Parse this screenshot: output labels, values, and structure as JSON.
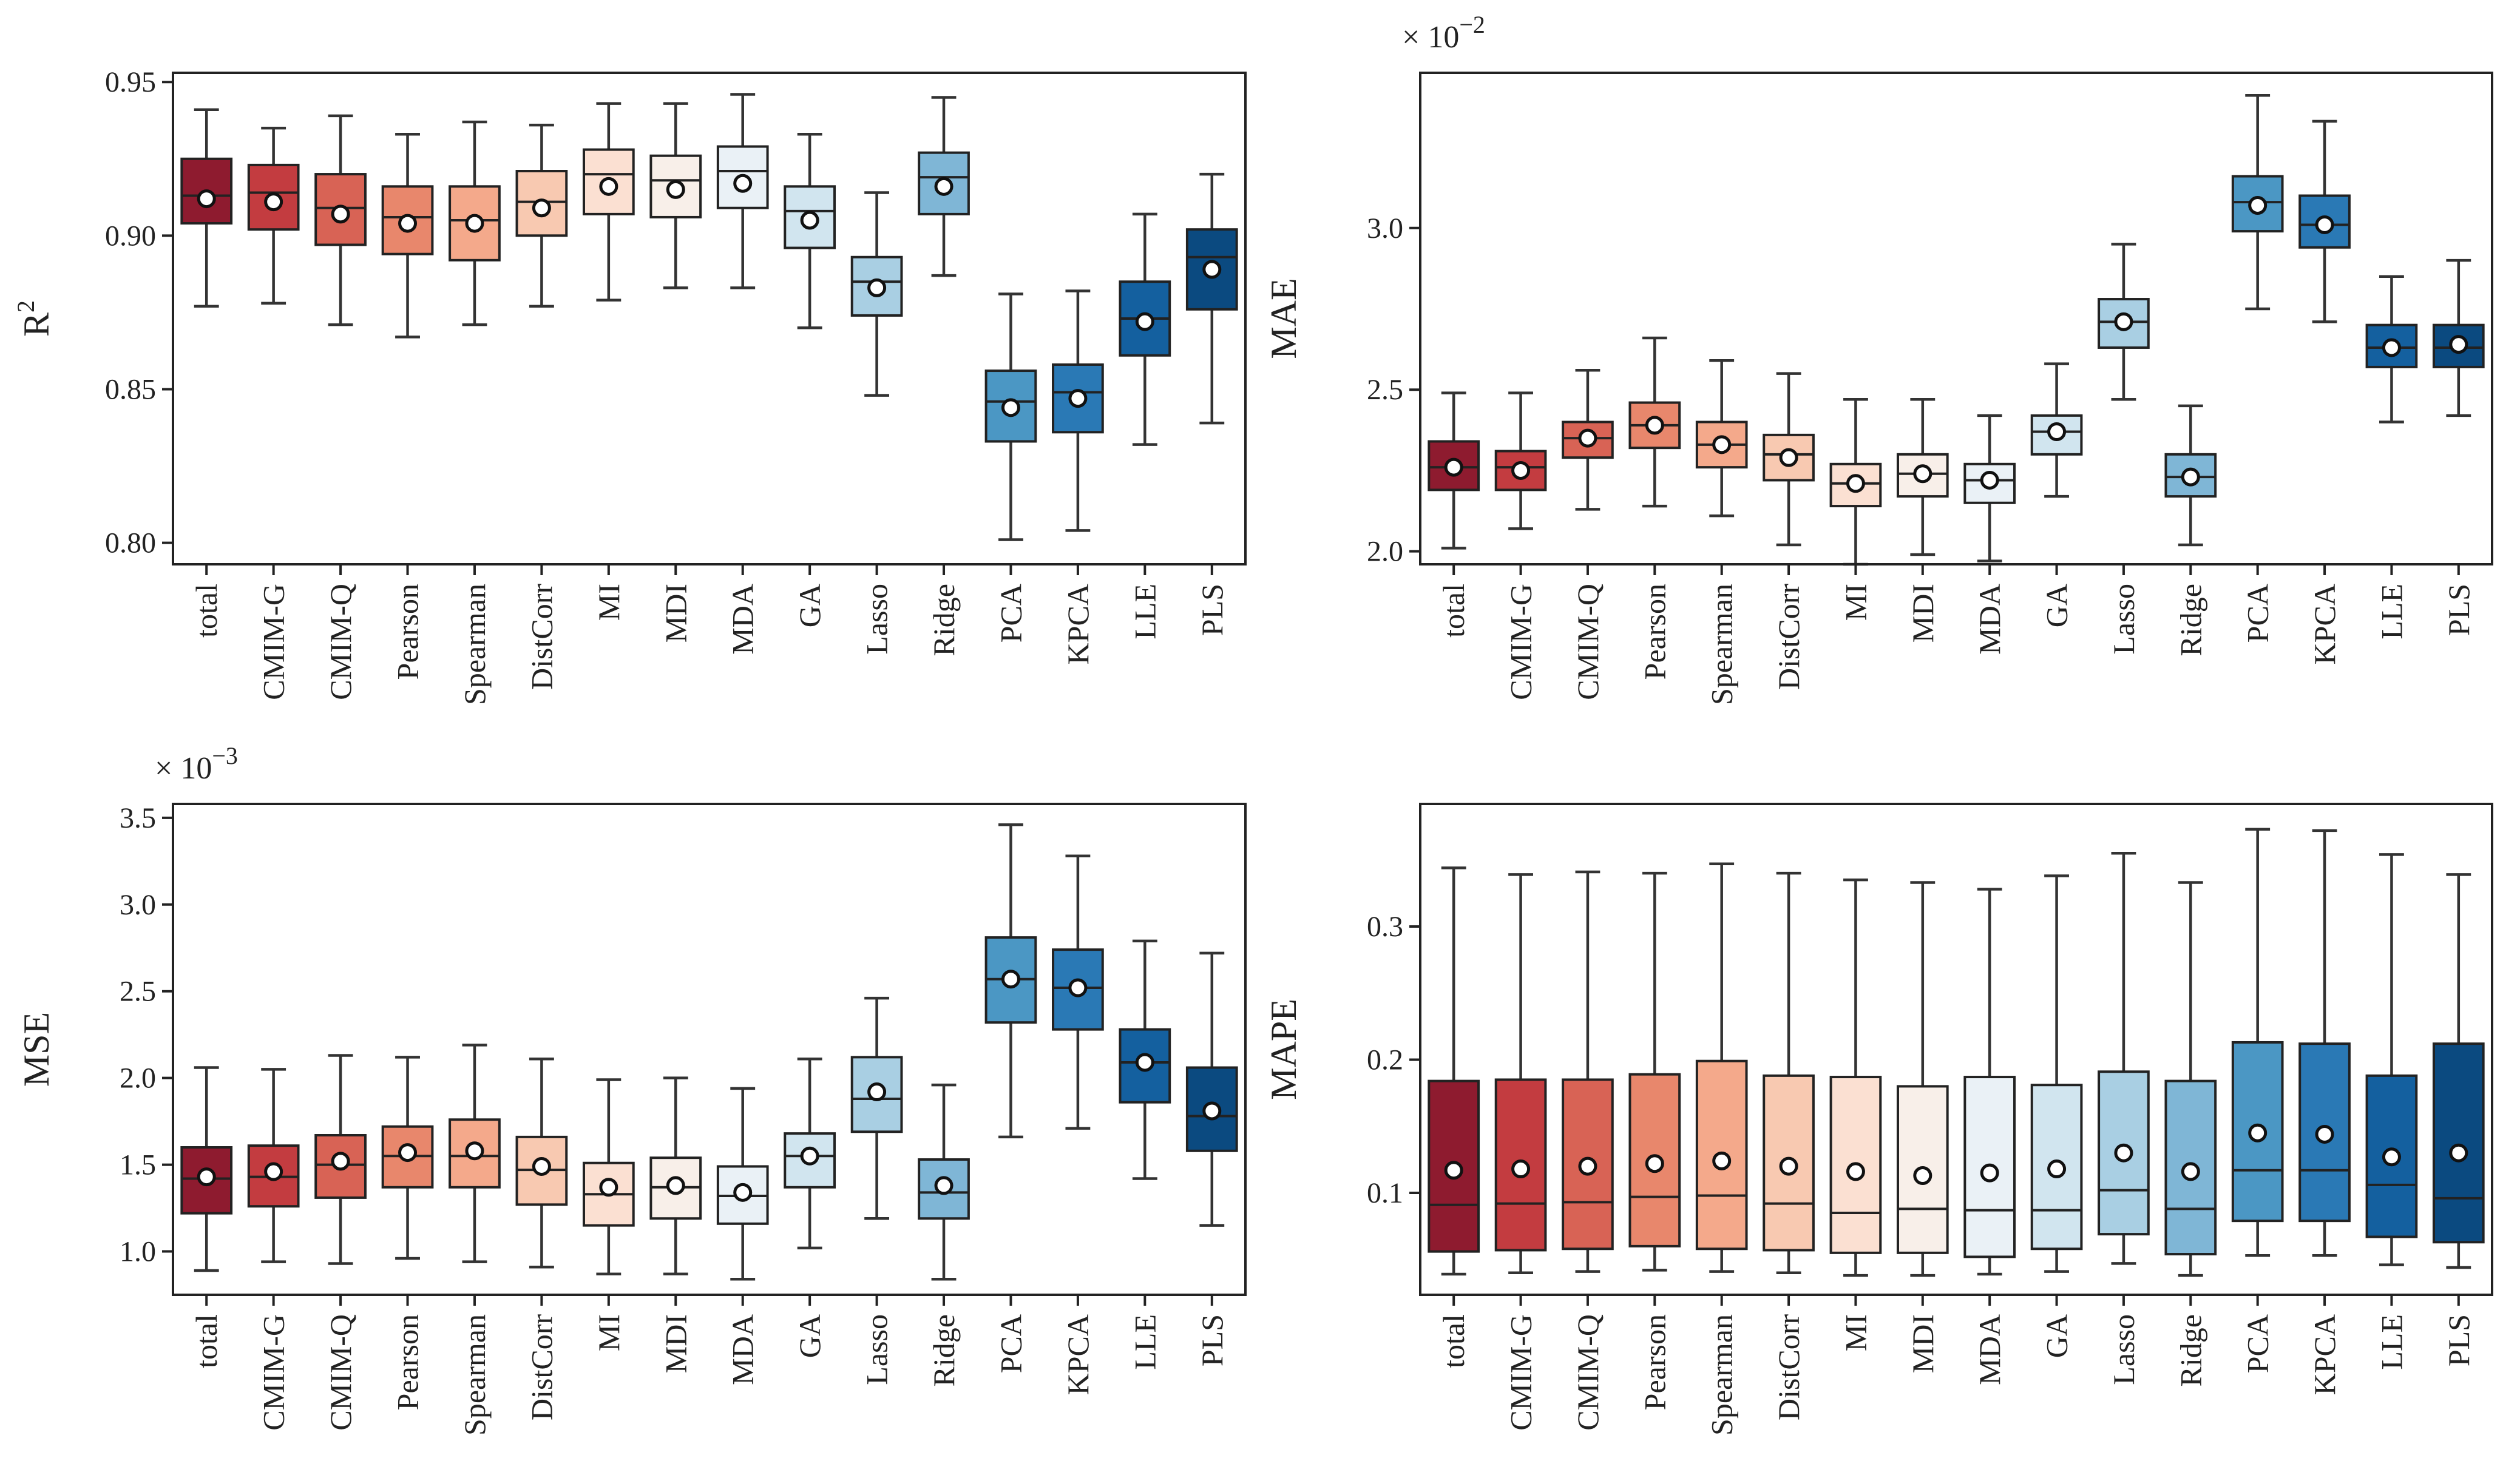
{
  "categories": [
    "total",
    "CMIM-G",
    "CMIM-Q",
    "Pearson",
    "Spearman",
    "DistCorr",
    "MI",
    "MDI",
    "MDA",
    "GA",
    "Lasso",
    "Ridge",
    "PCA",
    "KPCA",
    "LLE",
    "PLS"
  ],
  "colors": [
    "#8e1b2f",
    "#c33c40",
    "#d86355",
    "#e8876c",
    "#f4a98b",
    "#f8c9b1",
    "#fbe0d2",
    "#f8efe9",
    "#eaf1f6",
    "#d1e5ef",
    "#a9cfe3",
    "#7fb6d6",
    "#4b97c4",
    "#2a79b5",
    "#14609f",
    "#0b4a80"
  ],
  "chart_data": [
    {
      "type": "box",
      "title": "",
      "xlabel": "",
      "ylabel": "R",
      "ylabel_sup": "2",
      "ylim": [
        0.793,
        0.953
      ],
      "ticks": [
        0.8,
        0.85,
        0.9,
        0.95
      ],
      "tick_labels": [
        "0.80",
        "0.85",
        "0.90",
        "0.95"
      ],
      "multiplier": "",
      "multiplier_exp": "",
      "series": [
        {
          "name": "total",
          "whisker_low": 0.877,
          "q1": 0.904,
          "median": 0.913,
          "q3": 0.925,
          "whisker_high": 0.941,
          "mean": 0.912
        },
        {
          "name": "CMIM-G",
          "whisker_low": 0.878,
          "q1": 0.902,
          "median": 0.914,
          "q3": 0.923,
          "whisker_high": 0.935,
          "mean": 0.911
        },
        {
          "name": "CMIM-Q",
          "whisker_low": 0.871,
          "q1": 0.897,
          "median": 0.909,
          "q3": 0.92,
          "whisker_high": 0.939,
          "mean": 0.907
        },
        {
          "name": "Pearson",
          "whisker_low": 0.867,
          "q1": 0.894,
          "median": 0.906,
          "q3": 0.916,
          "whisker_high": 0.933,
          "mean": 0.904
        },
        {
          "name": "Spearman",
          "whisker_low": 0.871,
          "q1": 0.892,
          "median": 0.905,
          "q3": 0.916,
          "whisker_high": 0.937,
          "mean": 0.904
        },
        {
          "name": "DistCorr",
          "whisker_low": 0.877,
          "q1": 0.9,
          "median": 0.911,
          "q3": 0.921,
          "whisker_high": 0.936,
          "mean": 0.909
        },
        {
          "name": "MI",
          "whisker_low": 0.879,
          "q1": 0.907,
          "median": 0.92,
          "q3": 0.928,
          "whisker_high": 0.943,
          "mean": 0.916
        },
        {
          "name": "MDI",
          "whisker_low": 0.883,
          "q1": 0.906,
          "median": 0.918,
          "q3": 0.926,
          "whisker_high": 0.943,
          "mean": 0.915
        },
        {
          "name": "MDA",
          "whisker_low": 0.883,
          "q1": 0.909,
          "median": 0.921,
          "q3": 0.929,
          "whisker_high": 0.946,
          "mean": 0.917
        },
        {
          "name": "GA",
          "whisker_low": 0.87,
          "q1": 0.896,
          "median": 0.908,
          "q3": 0.916,
          "whisker_high": 0.933,
          "mean": 0.905
        },
        {
          "name": "Lasso",
          "whisker_low": 0.848,
          "q1": 0.874,
          "median": 0.885,
          "q3": 0.893,
          "whisker_high": 0.914,
          "mean": 0.883
        },
        {
          "name": "Ridge",
          "whisker_low": 0.887,
          "q1": 0.907,
          "median": 0.919,
          "q3": 0.927,
          "whisker_high": 0.945,
          "mean": 0.916
        },
        {
          "name": "PCA",
          "whisker_low": 0.801,
          "q1": 0.833,
          "median": 0.846,
          "q3": 0.856,
          "whisker_high": 0.881,
          "mean": 0.844
        },
        {
          "name": "KPCA",
          "whisker_low": 0.804,
          "q1": 0.836,
          "median": 0.849,
          "q3": 0.858,
          "whisker_high": 0.882,
          "mean": 0.847
        },
        {
          "name": "LLE",
          "whisker_low": 0.832,
          "q1": 0.861,
          "median": 0.873,
          "q3": 0.885,
          "whisker_high": 0.907,
          "mean": 0.872
        },
        {
          "name": "PLS",
          "whisker_low": 0.839,
          "q1": 0.876,
          "median": 0.893,
          "q3": 0.902,
          "whisker_high": 0.92,
          "mean": 0.889
        }
      ]
    },
    {
      "type": "box",
      "title": "",
      "xlabel": "",
      "ylabel": "MAE",
      "ylabel_sup": "",
      "ylim": [
        1.96,
        3.48
      ],
      "ticks": [
        2.0,
        2.5,
        3.0
      ],
      "tick_labels": [
        "2.0",
        "2.5",
        "3.0"
      ],
      "multiplier": "× 10",
      "multiplier_exp": "−2",
      "series": [
        {
          "name": "total",
          "whisker_low": 2.01,
          "q1": 2.19,
          "median": 2.26,
          "q3": 2.34,
          "whisker_high": 2.49,
          "mean": 2.26
        },
        {
          "name": "CMIM-G",
          "whisker_low": 2.07,
          "q1": 2.19,
          "median": 2.26,
          "q3": 2.31,
          "whisker_high": 2.49,
          "mean": 2.25
        },
        {
          "name": "CMIM-Q",
          "whisker_low": 2.13,
          "q1": 2.29,
          "median": 2.35,
          "q3": 2.4,
          "whisker_high": 2.56,
          "mean": 2.35
        },
        {
          "name": "Pearson",
          "whisker_low": 2.14,
          "q1": 2.32,
          "median": 2.39,
          "q3": 2.46,
          "whisker_high": 2.66,
          "mean": 2.39
        },
        {
          "name": "Spearman",
          "whisker_low": 2.11,
          "q1": 2.26,
          "median": 2.33,
          "q3": 2.4,
          "whisker_high": 2.59,
          "mean": 2.33
        },
        {
          "name": "DistCorr",
          "whisker_low": 2.02,
          "q1": 2.22,
          "median": 2.3,
          "q3": 2.36,
          "whisker_high": 2.55,
          "mean": 2.29
        },
        {
          "name": "MI",
          "whisker_low": 1.96,
          "q1": 2.14,
          "median": 2.21,
          "q3": 2.27,
          "whisker_high": 2.47,
          "mean": 2.21
        },
        {
          "name": "MDI",
          "whisker_low": 1.99,
          "q1": 2.17,
          "median": 2.24,
          "q3": 2.3,
          "whisker_high": 2.47,
          "mean": 2.24
        },
        {
          "name": "MDA",
          "whisker_low": 1.97,
          "q1": 2.15,
          "median": 2.22,
          "q3": 2.27,
          "whisker_high": 2.42,
          "mean": 2.22
        },
        {
          "name": "GA",
          "whisker_low": 2.17,
          "q1": 2.3,
          "median": 2.37,
          "q3": 2.42,
          "whisker_high": 2.58,
          "mean": 2.37
        },
        {
          "name": "Lasso",
          "whisker_low": 2.47,
          "q1": 2.63,
          "median": 2.71,
          "q3": 2.78,
          "whisker_high": 2.95,
          "mean": 2.71
        },
        {
          "name": "Ridge",
          "whisker_low": 2.02,
          "q1": 2.17,
          "median": 2.23,
          "q3": 2.3,
          "whisker_high": 2.45,
          "mean": 2.23
        },
        {
          "name": "PCA",
          "whisker_low": 2.75,
          "q1": 2.99,
          "median": 3.08,
          "q3": 3.16,
          "whisker_high": 3.41,
          "mean": 3.07
        },
        {
          "name": "KPCA",
          "whisker_low": 2.71,
          "q1": 2.94,
          "median": 3.01,
          "q3": 3.1,
          "whisker_high": 3.33,
          "mean": 3.01
        },
        {
          "name": "LLE",
          "whisker_low": 2.4,
          "q1": 2.57,
          "median": 2.63,
          "q3": 2.7,
          "whisker_high": 2.85,
          "mean": 2.63
        },
        {
          "name": "PLS",
          "whisker_low": 2.42,
          "q1": 2.57,
          "median": 2.63,
          "q3": 2.7,
          "whisker_high": 2.9,
          "mean": 2.64
        }
      ]
    },
    {
      "type": "box",
      "title": "",
      "xlabel": "",
      "ylabel": "MSE",
      "ylabel_sup": "",
      "ylim": [
        0.75,
        3.58
      ],
      "ticks": [
        1.0,
        1.5,
        2.0,
        2.5,
        3.0,
        3.5
      ],
      "tick_labels": [
        "1.0",
        "1.5",
        "2.0",
        "2.5",
        "3.0",
        "3.5"
      ],
      "multiplier": "× 10",
      "multiplier_exp": "−3",
      "series": [
        {
          "name": "total",
          "whisker_low": 0.89,
          "q1": 1.22,
          "median": 1.42,
          "q3": 1.6,
          "whisker_high": 2.06,
          "mean": 1.43
        },
        {
          "name": "CMIM-G",
          "whisker_low": 0.94,
          "q1": 1.26,
          "median": 1.43,
          "q3": 1.61,
          "whisker_high": 2.05,
          "mean": 1.46
        },
        {
          "name": "CMIM-Q",
          "whisker_low": 0.93,
          "q1": 1.31,
          "median": 1.5,
          "q3": 1.67,
          "whisker_high": 2.13,
          "mean": 1.52
        },
        {
          "name": "Pearson",
          "whisker_low": 0.96,
          "q1": 1.37,
          "median": 1.55,
          "q3": 1.72,
          "whisker_high": 2.12,
          "mean": 1.57
        },
        {
          "name": "Spearman",
          "whisker_low": 0.94,
          "q1": 1.37,
          "median": 1.55,
          "q3": 1.76,
          "whisker_high": 2.19,
          "mean": 1.58
        },
        {
          "name": "DistCorr",
          "whisker_low": 0.91,
          "q1": 1.27,
          "median": 1.47,
          "q3": 1.66,
          "whisker_high": 2.11,
          "mean": 1.49
        },
        {
          "name": "MI",
          "whisker_low": 0.87,
          "q1": 1.15,
          "median": 1.33,
          "q3": 1.51,
          "whisker_high": 1.99,
          "mean": 1.37
        },
        {
          "name": "MDI",
          "whisker_low": 0.87,
          "q1": 1.19,
          "median": 1.37,
          "q3": 1.54,
          "whisker_high": 2.0,
          "mean": 1.38
        },
        {
          "name": "MDA",
          "whisker_low": 0.84,
          "q1": 1.16,
          "median": 1.32,
          "q3": 1.49,
          "whisker_high": 1.94,
          "mean": 1.34
        },
        {
          "name": "GA",
          "whisker_low": 1.02,
          "q1": 1.37,
          "median": 1.55,
          "q3": 1.68,
          "whisker_high": 2.11,
          "mean": 1.55
        },
        {
          "name": "Lasso",
          "whisker_low": 1.19,
          "q1": 1.69,
          "median": 1.88,
          "q3": 2.12,
          "whisker_high": 2.46,
          "mean": 1.92
        },
        {
          "name": "Ridge",
          "whisker_low": 0.84,
          "q1": 1.19,
          "median": 1.34,
          "q3": 1.53,
          "whisker_high": 1.96,
          "mean": 1.38
        },
        {
          "name": "PCA",
          "whisker_low": 1.66,
          "q1": 2.32,
          "median": 2.57,
          "q3": 2.81,
          "whisker_high": 3.46,
          "mean": 2.57
        },
        {
          "name": "KPCA",
          "whisker_low": 1.71,
          "q1": 2.28,
          "median": 2.52,
          "q3": 2.74,
          "whisker_high": 3.28,
          "mean": 2.52
        },
        {
          "name": "LLE",
          "whisker_low": 1.42,
          "q1": 1.86,
          "median": 2.09,
          "q3": 2.28,
          "whisker_high": 2.79,
          "mean": 2.09
        },
        {
          "name": "PLS",
          "whisker_low": 1.15,
          "q1": 1.58,
          "median": 1.78,
          "q3": 2.06,
          "whisker_high": 2.72,
          "mean": 1.81
        }
      ]
    },
    {
      "type": "box",
      "title": "",
      "xlabel": "",
      "ylabel": "MAPE",
      "ylabel_sup": "",
      "ylim": [
        0.0235,
        0.392
      ],
      "ticks": [
        0.1,
        0.2,
        0.3
      ],
      "tick_labels": [
        "0.1",
        "0.2",
        "0.3"
      ],
      "multiplier": "",
      "multiplier_exp": "",
      "series": [
        {
          "name": "total",
          "whisker_low": 0.039,
          "q1": 0.056,
          "median": 0.091,
          "q3": 0.184,
          "whisker_high": 0.344,
          "mean": 0.117
        },
        {
          "name": "CMIM-G",
          "whisker_low": 0.04,
          "q1": 0.057,
          "median": 0.092,
          "q3": 0.185,
          "whisker_high": 0.339,
          "mean": 0.118
        },
        {
          "name": "CMIM-Q",
          "whisker_low": 0.041,
          "q1": 0.058,
          "median": 0.093,
          "q3": 0.185,
          "whisker_high": 0.341,
          "mean": 0.12
        },
        {
          "name": "Pearson",
          "whisker_low": 0.042,
          "q1": 0.06,
          "median": 0.097,
          "q3": 0.189,
          "whisker_high": 0.34,
          "mean": 0.122
        },
        {
          "name": "Spearman",
          "whisker_low": 0.041,
          "q1": 0.058,
          "median": 0.098,
          "q3": 0.199,
          "whisker_high": 0.347,
          "mean": 0.124
        },
        {
          "name": "DistCorr",
          "whisker_low": 0.04,
          "q1": 0.057,
          "median": 0.092,
          "q3": 0.188,
          "whisker_high": 0.34,
          "mean": 0.12
        },
        {
          "name": "MI",
          "whisker_low": 0.038,
          "q1": 0.055,
          "median": 0.085,
          "q3": 0.187,
          "whisker_high": 0.335,
          "mean": 0.116
        },
        {
          "name": "MDI",
          "whisker_low": 0.038,
          "q1": 0.055,
          "median": 0.088,
          "q3": 0.18,
          "whisker_high": 0.333,
          "mean": 0.113
        },
        {
          "name": "MDA",
          "whisker_low": 0.039,
          "q1": 0.052,
          "median": 0.087,
          "q3": 0.187,
          "whisker_high": 0.328,
          "mean": 0.115
        },
        {
          "name": "GA",
          "whisker_low": 0.041,
          "q1": 0.058,
          "median": 0.087,
          "q3": 0.181,
          "whisker_high": 0.338,
          "mean": 0.118
        },
        {
          "name": "Lasso",
          "whisker_low": 0.047,
          "q1": 0.069,
          "median": 0.102,
          "q3": 0.191,
          "whisker_high": 0.355,
          "mean": 0.13
        },
        {
          "name": "Ridge",
          "whisker_low": 0.038,
          "q1": 0.054,
          "median": 0.088,
          "q3": 0.184,
          "whisker_high": 0.333,
          "mean": 0.116
        },
        {
          "name": "PCA",
          "whisker_low": 0.053,
          "q1": 0.079,
          "median": 0.117,
          "q3": 0.213,
          "whisker_high": 0.373,
          "mean": 0.145
        },
        {
          "name": "KPCA",
          "whisker_low": 0.053,
          "q1": 0.079,
          "median": 0.117,
          "q3": 0.212,
          "whisker_high": 0.372,
          "mean": 0.144
        },
        {
          "name": "LLE",
          "whisker_low": 0.046,
          "q1": 0.067,
          "median": 0.106,
          "q3": 0.188,
          "whisker_high": 0.354,
          "mean": 0.127
        },
        {
          "name": "PLS",
          "whisker_low": 0.044,
          "q1": 0.063,
          "median": 0.096,
          "q3": 0.212,
          "whisker_high": 0.339,
          "mean": 0.13
        }
      ]
    }
  ]
}
